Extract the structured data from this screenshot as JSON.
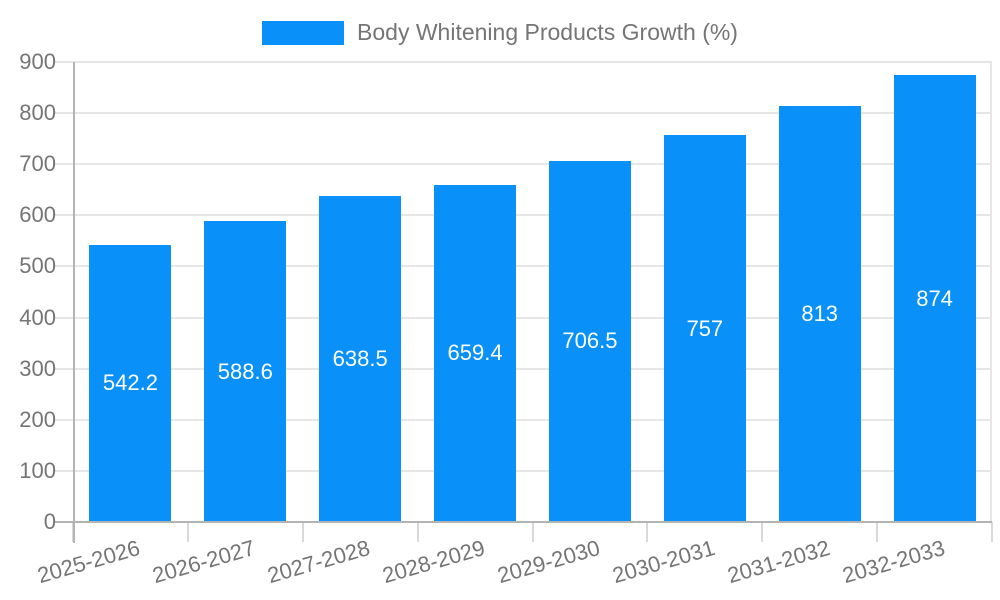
{
  "chart_data": {
    "type": "bar",
    "title": "Body Whitening Products Growth (%)",
    "categories": [
      "2025-2026",
      "2026-2027",
      "2027-2028",
      "2028-2029",
      "2029-2030",
      "2030-2031",
      "2031-2032",
      "2032-2033"
    ],
    "values": [
      542.2,
      588.6,
      638.5,
      659.4,
      706.5,
      757,
      813,
      874
    ],
    "value_labels": [
      "542.2",
      "588.6",
      "638.5",
      "659.4",
      "706.5",
      "757",
      "813",
      "874"
    ],
    "xlabel": "",
    "ylabel": "",
    "ylim": [
      0,
      900
    ],
    "yticks": [
      0,
      100,
      200,
      300,
      400,
      500,
      600,
      700,
      800,
      900
    ],
    "grid": true,
    "legend_position": "top",
    "bar_color": "#0991F9",
    "value_label_color": "#FFFFFF",
    "axis_text_color": "#757575",
    "gridline_color": "#E6E6E6",
    "axis_line_color": "#B3B3B3",
    "background_color": "#FFFFFF"
  }
}
